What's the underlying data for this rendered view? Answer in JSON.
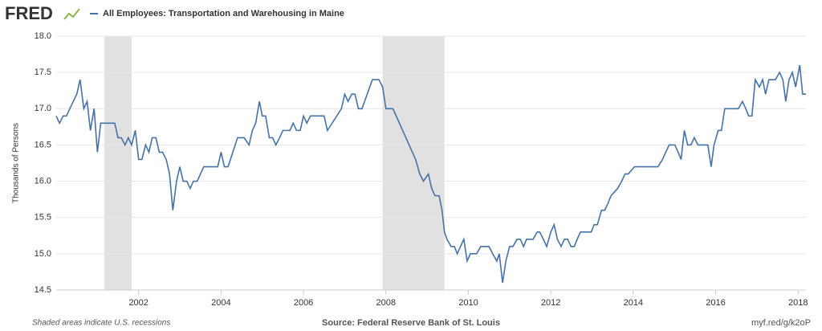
{
  "logo": "FRED",
  "chart_data": {
    "type": "line",
    "title": "All Employees: Transportation and Warehousing in Maine",
    "y_label": "Thousands of Persons",
    "note": "Shaded areas indicate U.S. recessions",
    "source": "Source: Federal Reserve Bank of St. Louis",
    "link": "myf.red/g/k2oP",
    "xlim": [
      2000.0,
      2018.19
    ],
    "xticks": [
      2002,
      2004,
      2006,
      2008,
      2010,
      2012,
      2014,
      2016,
      2018
    ],
    "ylim": [
      14.5,
      18.0
    ],
    "yticks": [
      14.5,
      {
        "value": 15,
        "label": "15.0"
      },
      15.5,
      {
        "value": 16,
        "label": "16.0"
      },
      16.5,
      {
        "value": 17,
        "label": "17.0"
      },
      17.5,
      {
        "value": 18,
        "label": "18.0"
      }
    ],
    "grid": true,
    "recessions": [
      [
        2001.17,
        2001.83
      ],
      [
        2007.92,
        2009.42
      ]
    ],
    "recession_color": "#e1e1e1",
    "x": [
      2000.0,
      2000.08,
      2000.17,
      2000.25,
      2000.33,
      2000.5,
      2000.58,
      2000.67,
      2000.75,
      2000.83,
      2000.92,
      2001.0,
      2001.08,
      2001.42,
      2001.5,
      2001.58,
      2001.67,
      2001.75,
      2001.83,
      2001.92,
      2002.0,
      2002.08,
      2002.17,
      2002.25,
      2002.33,
      2002.42,
      2002.5,
      2002.58,
      2002.67,
      2002.75,
      2002.83,
      2002.92,
      2003.0,
      2003.08,
      2003.17,
      2003.25,
      2003.33,
      2003.42,
      2003.58,
      2003.92,
      2004.0,
      2004.08,
      2004.17,
      2004.4,
      2004.56,
      2004.68,
      2004.76,
      2004.84,
      2004.93,
      2005.0,
      2005.08,
      2005.17,
      2005.25,
      2005.33,
      2005.42,
      2005.5,
      2005.67,
      2005.75,
      2005.83,
      2005.92,
      2006.0,
      2006.08,
      2006.17,
      2006.5,
      2006.58,
      2006.92,
      2007.0,
      2007.08,
      2007.17,
      2007.25,
      2007.33,
      2007.42,
      2007.67,
      2007.83,
      2007.92,
      2008.0,
      2008.17,
      2008.72,
      2008.82,
      2008.91,
      2009.03,
      2009.11,
      2009.19,
      2009.29,
      2009.36,
      2009.42,
      2009.48,
      2009.58,
      2009.66,
      2009.73,
      2009.81,
      2009.89,
      2009.97,
      2010.05,
      2010.2,
      2010.3,
      2010.5,
      2010.59,
      2010.69,
      2010.75,
      2010.83,
      2010.91,
      2011.0,
      2011.08,
      2011.18,
      2011.26,
      2011.34,
      2011.41,
      2011.57,
      2011.67,
      2011.73,
      2011.82,
      2011.9,
      2012.0,
      2012.08,
      2012.16,
      2012.25,
      2012.33,
      2012.41,
      2012.49,
      2012.57,
      2012.64,
      2012.72,
      2012.98,
      2013.05,
      2013.13,
      2013.23,
      2013.31,
      2013.39,
      2013.46,
      2013.62,
      2013.72,
      2013.8,
      2013.88,
      2014.03,
      2014.6,
      2014.71,
      2014.79,
      2014.87,
      2015.01,
      2015.09,
      2015.16,
      2015.24,
      2015.32,
      2015.4,
      2015.48,
      2015.57,
      2015.81,
      2015.89,
      2015.96,
      2016.06,
      2016.14,
      2016.22,
      2016.55,
      2016.65,
      2016.73,
      2016.8,
      2016.88,
      2016.96,
      2017.06,
      2017.14,
      2017.21,
      2017.29,
      2017.45,
      2017.55,
      2017.63,
      2017.7,
      2017.78,
      2017.86,
      2017.94,
      2018.04,
      2018.11,
      2018.19
    ],
    "series": [
      {
        "name": "All Employees: Transportation and Warehousing in Maine",
        "color": "#4572a7",
        "values": [
          16.9,
          16.8,
          16.9,
          16.9,
          17.0,
          17.2,
          17.4,
          17.0,
          17.1,
          16.7,
          17.0,
          16.4,
          16.8,
          16.8,
          16.6,
          16.6,
          16.5,
          16.6,
          16.5,
          16.7,
          16.3,
          16.3,
          16.5,
          16.4,
          16.6,
          16.6,
          16.4,
          16.4,
          16.3,
          16.1,
          15.6,
          16.0,
          16.2,
          16.0,
          16.0,
          15.9,
          16.0,
          16.0,
          16.2,
          16.2,
          16.4,
          16.2,
          16.2,
          16.6,
          16.6,
          16.5,
          16.7,
          16.8,
          17.1,
          16.9,
          16.9,
          16.6,
          16.6,
          16.5,
          16.6,
          16.7,
          16.7,
          16.8,
          16.7,
          16.7,
          16.9,
          16.8,
          16.9,
          16.9,
          16.7,
          17.0,
          17.2,
          17.1,
          17.2,
          17.2,
          17.0,
          17.0,
          17.4,
          17.4,
          17.3,
          17.0,
          17.0,
          16.3,
          16.1,
          16.0,
          16.1,
          15.9,
          15.8,
          15.8,
          15.6,
          15.3,
          15.2,
          15.1,
          15.1,
          15.0,
          15.1,
          15.2,
          14.9,
          15.0,
          15.0,
          15.1,
          15.1,
          15.0,
          14.9,
          15.0,
          14.6,
          14.9,
          15.1,
          15.1,
          15.2,
          15.2,
          15.1,
          15.2,
          15.2,
          15.3,
          15.3,
          15.2,
          15.1,
          15.3,
          15.4,
          15.2,
          15.1,
          15.2,
          15.2,
          15.1,
          15.1,
          15.2,
          15.3,
          15.3,
          15.4,
          15.4,
          15.6,
          15.6,
          15.7,
          15.8,
          15.9,
          16.0,
          16.1,
          16.1,
          16.2,
          16.2,
          16.3,
          16.4,
          16.5,
          16.5,
          16.4,
          16.3,
          16.7,
          16.5,
          16.5,
          16.6,
          16.5,
          16.5,
          16.2,
          16.5,
          16.7,
          16.7,
          17.0,
          17.0,
          17.1,
          17.0,
          16.9,
          16.9,
          17.4,
          17.3,
          17.4,
          17.2,
          17.4,
          17.4,
          17.5,
          17.4,
          17.1,
          17.4,
          17.5,
          17.3,
          17.6,
          17.2,
          17.2
        ]
      }
    ]
  }
}
